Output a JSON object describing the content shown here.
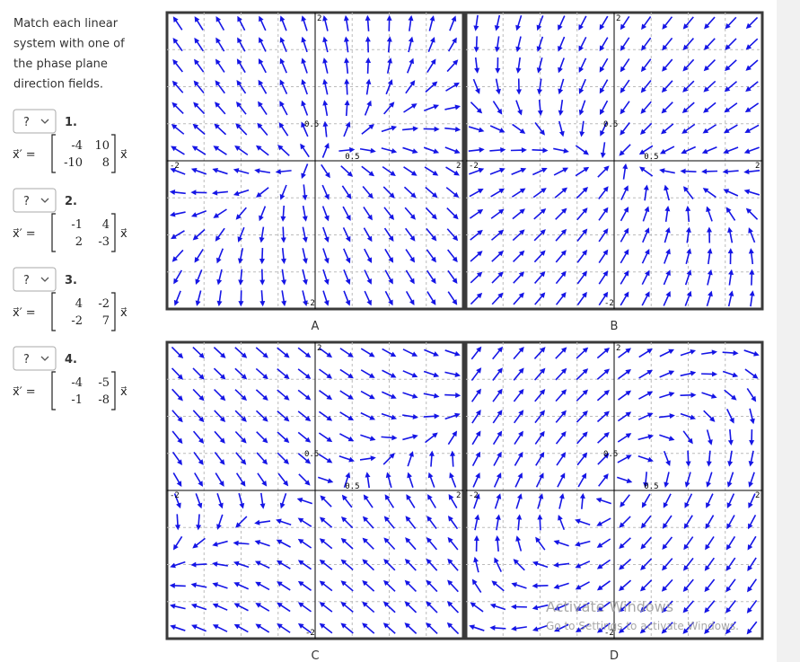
{
  "instructions": [
    "Match each linear",
    "system with one of",
    "the phase plane",
    "direction fields."
  ],
  "questions": [
    {
      "select": "?",
      "number": "1.",
      "lhs": "x⃗′ =",
      "matrix": [
        [
          -4,
          10
        ],
        [
          -10,
          8
        ]
      ],
      "rhs": "x⃗"
    },
    {
      "select": "?",
      "number": "2.",
      "lhs": "x⃗′ =",
      "matrix": [
        [
          -1,
          4
        ],
        [
          2,
          -3
        ]
      ],
      "rhs": "x⃗"
    },
    {
      "select": "?",
      "number": "3.",
      "lhs": "x⃗′ =",
      "matrix": [
        [
          4,
          -2
        ],
        [
          -2,
          7
        ]
      ],
      "rhs": "x⃗"
    },
    {
      "select": "?",
      "number": "4.",
      "lhs": "x⃗′ =",
      "matrix": [
        [
          -4,
          -5
        ],
        [
          -1,
          -8
        ]
      ],
      "rhs": "x⃗"
    }
  ],
  "plots": [
    {
      "label": "A",
      "top": "2",
      "bottom": "-2",
      "left": "-2",
      "right": "2",
      "x_mid": "0.5",
      "y_mid": "0.5"
    },
    {
      "label": "B",
      "top": "2",
      "bottom": "-2",
      "left": "-2",
      "right": "2",
      "x_mid": "0.5",
      "y_mid": "0.5"
    },
    {
      "label": "C",
      "top": "2",
      "bottom": "-2",
      "left": "-2",
      "right": "2",
      "x_mid": "0.5",
      "y_mid": "0.5"
    },
    {
      "label": "D",
      "top": "2",
      "bottom": "-2",
      "left": "-2",
      "right": "2",
      "x_mid": "0.5",
      "y_mid": "0.5"
    }
  ],
  "watermark": {
    "title": "Activate Windows",
    "subtitle": "Go to Settings to activate Windows."
  }
}
